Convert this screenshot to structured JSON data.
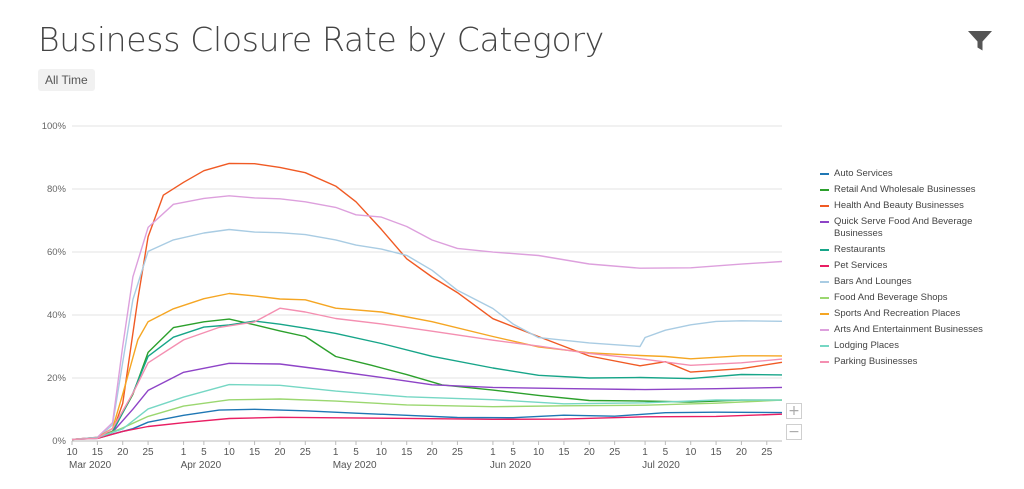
{
  "header": {
    "title": "Business Closure Rate by Category",
    "range_badge": "All Time"
  },
  "icons": {
    "filter": "filter-funnel-icon"
  },
  "zoom": {
    "in": "+",
    "out": "−"
  },
  "chart_data": {
    "type": "line",
    "title": "Business Closure Rate by Category",
    "xlabel": "",
    "ylabel": "",
    "x_range": [
      "2020-03-10",
      "2020-07-28"
    ],
    "ylim": [
      0,
      100
    ],
    "y_ticks": [
      0,
      20,
      40,
      60,
      80,
      100
    ],
    "y_tick_labels": [
      "0%",
      "20%",
      "40%",
      "60%",
      "80%",
      "100%"
    ],
    "x_tick_labels": [
      {
        "date": "2020-03-10",
        "label": "10",
        "sub": "Mar 2020"
      },
      {
        "date": "2020-03-15",
        "label": "15"
      },
      {
        "date": "2020-03-20",
        "label": "20"
      },
      {
        "date": "2020-03-25",
        "label": "25"
      },
      {
        "date": "2020-04-01",
        "label": "1",
        "sub": "Apr 2020"
      },
      {
        "date": "2020-04-05",
        "label": "5"
      },
      {
        "date": "2020-04-10",
        "label": "10"
      },
      {
        "date": "2020-04-15",
        "label": "15"
      },
      {
        "date": "2020-04-20",
        "label": "20"
      },
      {
        "date": "2020-04-25",
        "label": "25"
      },
      {
        "date": "2020-05-01",
        "label": "1",
        "sub": "May 2020"
      },
      {
        "date": "2020-05-05",
        "label": "5"
      },
      {
        "date": "2020-05-10",
        "label": "10"
      },
      {
        "date": "2020-05-15",
        "label": "15"
      },
      {
        "date": "2020-05-20",
        "label": "20"
      },
      {
        "date": "2020-05-25",
        "label": "25"
      },
      {
        "date": "2020-06-01",
        "label": "1",
        "sub": "Jun 2020"
      },
      {
        "date": "2020-06-05",
        "label": "5"
      },
      {
        "date": "2020-06-10",
        "label": "10"
      },
      {
        "date": "2020-06-15",
        "label": "15"
      },
      {
        "date": "2020-06-20",
        "label": "20"
      },
      {
        "date": "2020-06-25",
        "label": "25"
      },
      {
        "date": "2020-07-01",
        "label": "1",
        "sub": "Jul 2020"
      },
      {
        "date": "2020-07-05",
        "label": "5"
      },
      {
        "date": "2020-07-10",
        "label": "10"
      },
      {
        "date": "2020-07-15",
        "label": "15"
      },
      {
        "date": "2020-07-20",
        "label": "20"
      },
      {
        "date": "2020-07-25",
        "label": "25"
      }
    ],
    "grid": true,
    "legend_position": "right",
    "series": [
      {
        "name": "Auto Services",
        "color": "#1f77b4",
        "x": [
          "2020-03-10",
          "2020-03-15",
          "2020-03-18",
          "2020-03-22",
          "2020-03-25",
          "2020-04-01",
          "2020-04-08",
          "2020-04-15",
          "2020-04-25",
          "2020-05-05",
          "2020-05-15",
          "2020-05-25",
          "2020-06-05",
          "2020-06-15",
          "2020-06-25",
          "2020-07-05",
          "2020-07-15",
          "2020-07-28"
        ],
        "values": [
          0.5,
          1,
          2,
          4,
          6,
          8,
          10,
          10,
          9.5,
          9,
          8,
          7.5,
          7.5,
          8,
          8,
          9,
          9,
          9
        ]
      },
      {
        "name": "Retail And Wholesale Businesses",
        "color": "#2ca02c",
        "x": [
          "2020-03-10",
          "2020-03-15",
          "2020-03-18",
          "2020-03-22",
          "2020-03-25",
          "2020-03-30",
          "2020-04-05",
          "2020-04-10",
          "2020-04-15",
          "2020-04-20",
          "2020-04-25",
          "2020-05-01",
          "2020-05-08",
          "2020-05-15",
          "2020-05-22",
          "2020-06-01",
          "2020-06-10",
          "2020-06-20",
          "2020-06-30",
          "2020-07-10",
          "2020-07-20",
          "2020-07-28"
        ],
        "values": [
          0.5,
          1,
          3,
          15,
          28,
          36,
          38,
          38.5,
          37,
          35,
          33,
          27,
          24,
          21,
          18,
          16,
          14.5,
          13,
          12.5,
          12.5,
          13,
          13
        ]
      },
      {
        "name": "Health And Beauty Businesses",
        "color": "#f05a24",
        "x": [
          "2020-03-10",
          "2020-03-15",
          "2020-03-18",
          "2020-03-20",
          "2020-03-23",
          "2020-03-25",
          "2020-03-28",
          "2020-04-01",
          "2020-04-05",
          "2020-04-10",
          "2020-04-15",
          "2020-04-20",
          "2020-04-25",
          "2020-05-01",
          "2020-05-05",
          "2020-05-10",
          "2020-05-15",
          "2020-05-20",
          "2020-05-25",
          "2020-06-01",
          "2020-06-10",
          "2020-06-20",
          "2020-06-30",
          "2020-07-05",
          "2020-07-10",
          "2020-07-20",
          "2020-07-28"
        ],
        "values": [
          0.5,
          1,
          3,
          12,
          45,
          65,
          78,
          82,
          86,
          88,
          88,
          87,
          85,
          81,
          76,
          67,
          58,
          52,
          47,
          39,
          33,
          27,
          24,
          25,
          22,
          23,
          25
        ]
      },
      {
        "name": "Quick Serve Food And Beverage Businesses",
        "color": "#8e44c7",
        "x": [
          "2020-03-10",
          "2020-03-15",
          "2020-03-18",
          "2020-03-22",
          "2020-03-25",
          "2020-04-01",
          "2020-04-10",
          "2020-04-20",
          "2020-04-30",
          "2020-05-10",
          "2020-05-20",
          "2020-06-01",
          "2020-06-15",
          "2020-07-01",
          "2020-07-15",
          "2020-07-28"
        ],
        "values": [
          0.5,
          1,
          3,
          10,
          16,
          22,
          24.5,
          24.5,
          22.5,
          20,
          18,
          17,
          16.5,
          16.5,
          16.5,
          17
        ]
      },
      {
        "name": "Restaurants",
        "color": "#17a589",
        "x": [
          "2020-03-10",
          "2020-03-15",
          "2020-03-18",
          "2020-03-22",
          "2020-03-25",
          "2020-03-30",
          "2020-04-05",
          "2020-04-10",
          "2020-04-15",
          "2020-04-20",
          "2020-04-25",
          "2020-05-01",
          "2020-05-10",
          "2020-05-20",
          "2020-06-01",
          "2020-06-10",
          "2020-06-20",
          "2020-06-30",
          "2020-07-10",
          "2020-07-20",
          "2020-07-28"
        ],
        "values": [
          0.5,
          1,
          3,
          15,
          27,
          33,
          36,
          37,
          38,
          37,
          36,
          34,
          31,
          27,
          23,
          21,
          20,
          20,
          20,
          21,
          21
        ]
      },
      {
        "name": "Pet Services",
        "color": "#e91e63",
        "x": [
          "2020-03-10",
          "2020-03-15",
          "2020-03-20",
          "2020-03-25",
          "2020-04-01",
          "2020-04-10",
          "2020-04-20",
          "2020-05-01",
          "2020-05-15",
          "2020-06-01",
          "2020-06-15",
          "2020-07-01",
          "2020-07-15",
          "2020-07-28"
        ],
        "values": [
          0.5,
          1,
          3,
          4.5,
          6,
          7,
          7.5,
          7.5,
          7,
          7,
          7,
          7.5,
          8,
          8.5
        ]
      },
      {
        "name": "Bars And Lounges",
        "color": "#a9cce3",
        "x": [
          "2020-03-10",
          "2020-03-15",
          "2020-03-18",
          "2020-03-20",
          "2020-03-22",
          "2020-03-25",
          "2020-03-30",
          "2020-04-05",
          "2020-04-10",
          "2020-04-15",
          "2020-04-20",
          "2020-04-25",
          "2020-05-01",
          "2020-05-05",
          "2020-05-10",
          "2020-05-15",
          "2020-05-20",
          "2020-05-25",
          "2020-06-01",
          "2020-06-05",
          "2020-06-10",
          "2020-06-20",
          "2020-06-30",
          "2020-07-01",
          "2020-07-05",
          "2020-07-10",
          "2020-07-15",
          "2020-07-20",
          "2020-07-28"
        ],
        "values": [
          0.5,
          1,
          5,
          25,
          45,
          60,
          64,
          66,
          67,
          66.5,
          66,
          65.5,
          64,
          62,
          61,
          59,
          54,
          48,
          42,
          37,
          33,
          31,
          30,
          33,
          35,
          37,
          38,
          38,
          38
        ]
      },
      {
        "name": "Food And Beverage Shops",
        "color": "#9bd770",
        "x": [
          "2020-03-10",
          "2020-03-15",
          "2020-03-20",
          "2020-03-25",
          "2020-04-01",
          "2020-04-10",
          "2020-04-20",
          "2020-05-01",
          "2020-05-15",
          "2020-06-01",
          "2020-06-15",
          "2020-07-01",
          "2020-07-15",
          "2020-07-28"
        ],
        "values": [
          0.5,
          1,
          4,
          8,
          11,
          13,
          13.5,
          12.5,
          11.5,
          11,
          11,
          11.5,
          12,
          13
        ]
      },
      {
        "name": "Sports And Recreation Places",
        "color": "#f5a623",
        "x": [
          "2020-03-10",
          "2020-03-15",
          "2020-03-18",
          "2020-03-20",
          "2020-03-23",
          "2020-03-25",
          "2020-03-30",
          "2020-04-05",
          "2020-04-10",
          "2020-04-15",
          "2020-04-20",
          "2020-04-25",
          "2020-05-01",
          "2020-05-10",
          "2020-05-20",
          "2020-06-01",
          "2020-06-10",
          "2020-06-20",
          "2020-06-30",
          "2020-07-05",
          "2020-07-10",
          "2020-07-20",
          "2020-07-28"
        ],
        "values": [
          0.5,
          1,
          4,
          15,
          32,
          38,
          42,
          45,
          47,
          46,
          45,
          45,
          42,
          41,
          38,
          33,
          30,
          28,
          27,
          27,
          26,
          27,
          27
        ]
      },
      {
        "name": "Arts And Entertainment Businesses",
        "color": "#dda0dd",
        "x": [
          "2020-03-10",
          "2020-03-15",
          "2020-03-18",
          "2020-03-20",
          "2020-03-22",
          "2020-03-25",
          "2020-03-30",
          "2020-04-05",
          "2020-04-10",
          "2020-04-15",
          "2020-04-20",
          "2020-04-25",
          "2020-05-01",
          "2020-05-05",
          "2020-05-10",
          "2020-05-15",
          "2020-05-20",
          "2020-05-25",
          "2020-06-01",
          "2020-06-10",
          "2020-06-20",
          "2020-06-30",
          "2020-07-10",
          "2020-07-20",
          "2020-07-28"
        ],
        "values": [
          0.5,
          1,
          6,
          30,
          52,
          68,
          75,
          77,
          78,
          77,
          77,
          76,
          74,
          72,
          71,
          68,
          64,
          61,
          60,
          59,
          56,
          55,
          55,
          56,
          57
        ]
      },
      {
        "name": "Lodging Places",
        "color": "#76d7c4",
        "x": [
          "2020-03-10",
          "2020-03-15",
          "2020-03-20",
          "2020-03-25",
          "2020-04-01",
          "2020-04-10",
          "2020-04-20",
          "2020-05-01",
          "2020-05-15",
          "2020-06-01",
          "2020-06-15",
          "2020-07-01",
          "2020-07-15",
          "2020-07-28"
        ],
        "values": [
          0.5,
          1,
          4,
          10,
          14,
          18,
          17.5,
          16,
          14,
          13,
          12,
          12,
          13,
          13
        ]
      },
      {
        "name": "Parking Businesses",
        "color": "#f48fb1",
        "x": [
          "2020-03-10",
          "2020-03-15",
          "2020-03-18",
          "2020-03-22",
          "2020-03-25",
          "2020-04-01",
          "2020-04-08",
          "2020-04-15",
          "2020-04-20",
          "2020-04-25",
          "2020-05-01",
          "2020-05-10",
          "2020-05-20",
          "2020-06-01",
          "2020-06-10",
          "2020-06-20",
          "2020-06-30",
          "2020-07-10",
          "2020-07-20",
          "2020-07-28"
        ],
        "values": [
          0.5,
          1,
          4,
          15,
          25,
          32,
          36,
          38,
          42,
          41,
          39,
          37,
          35,
          32,
          30,
          28,
          26,
          24,
          25,
          26
        ]
      }
    ]
  }
}
